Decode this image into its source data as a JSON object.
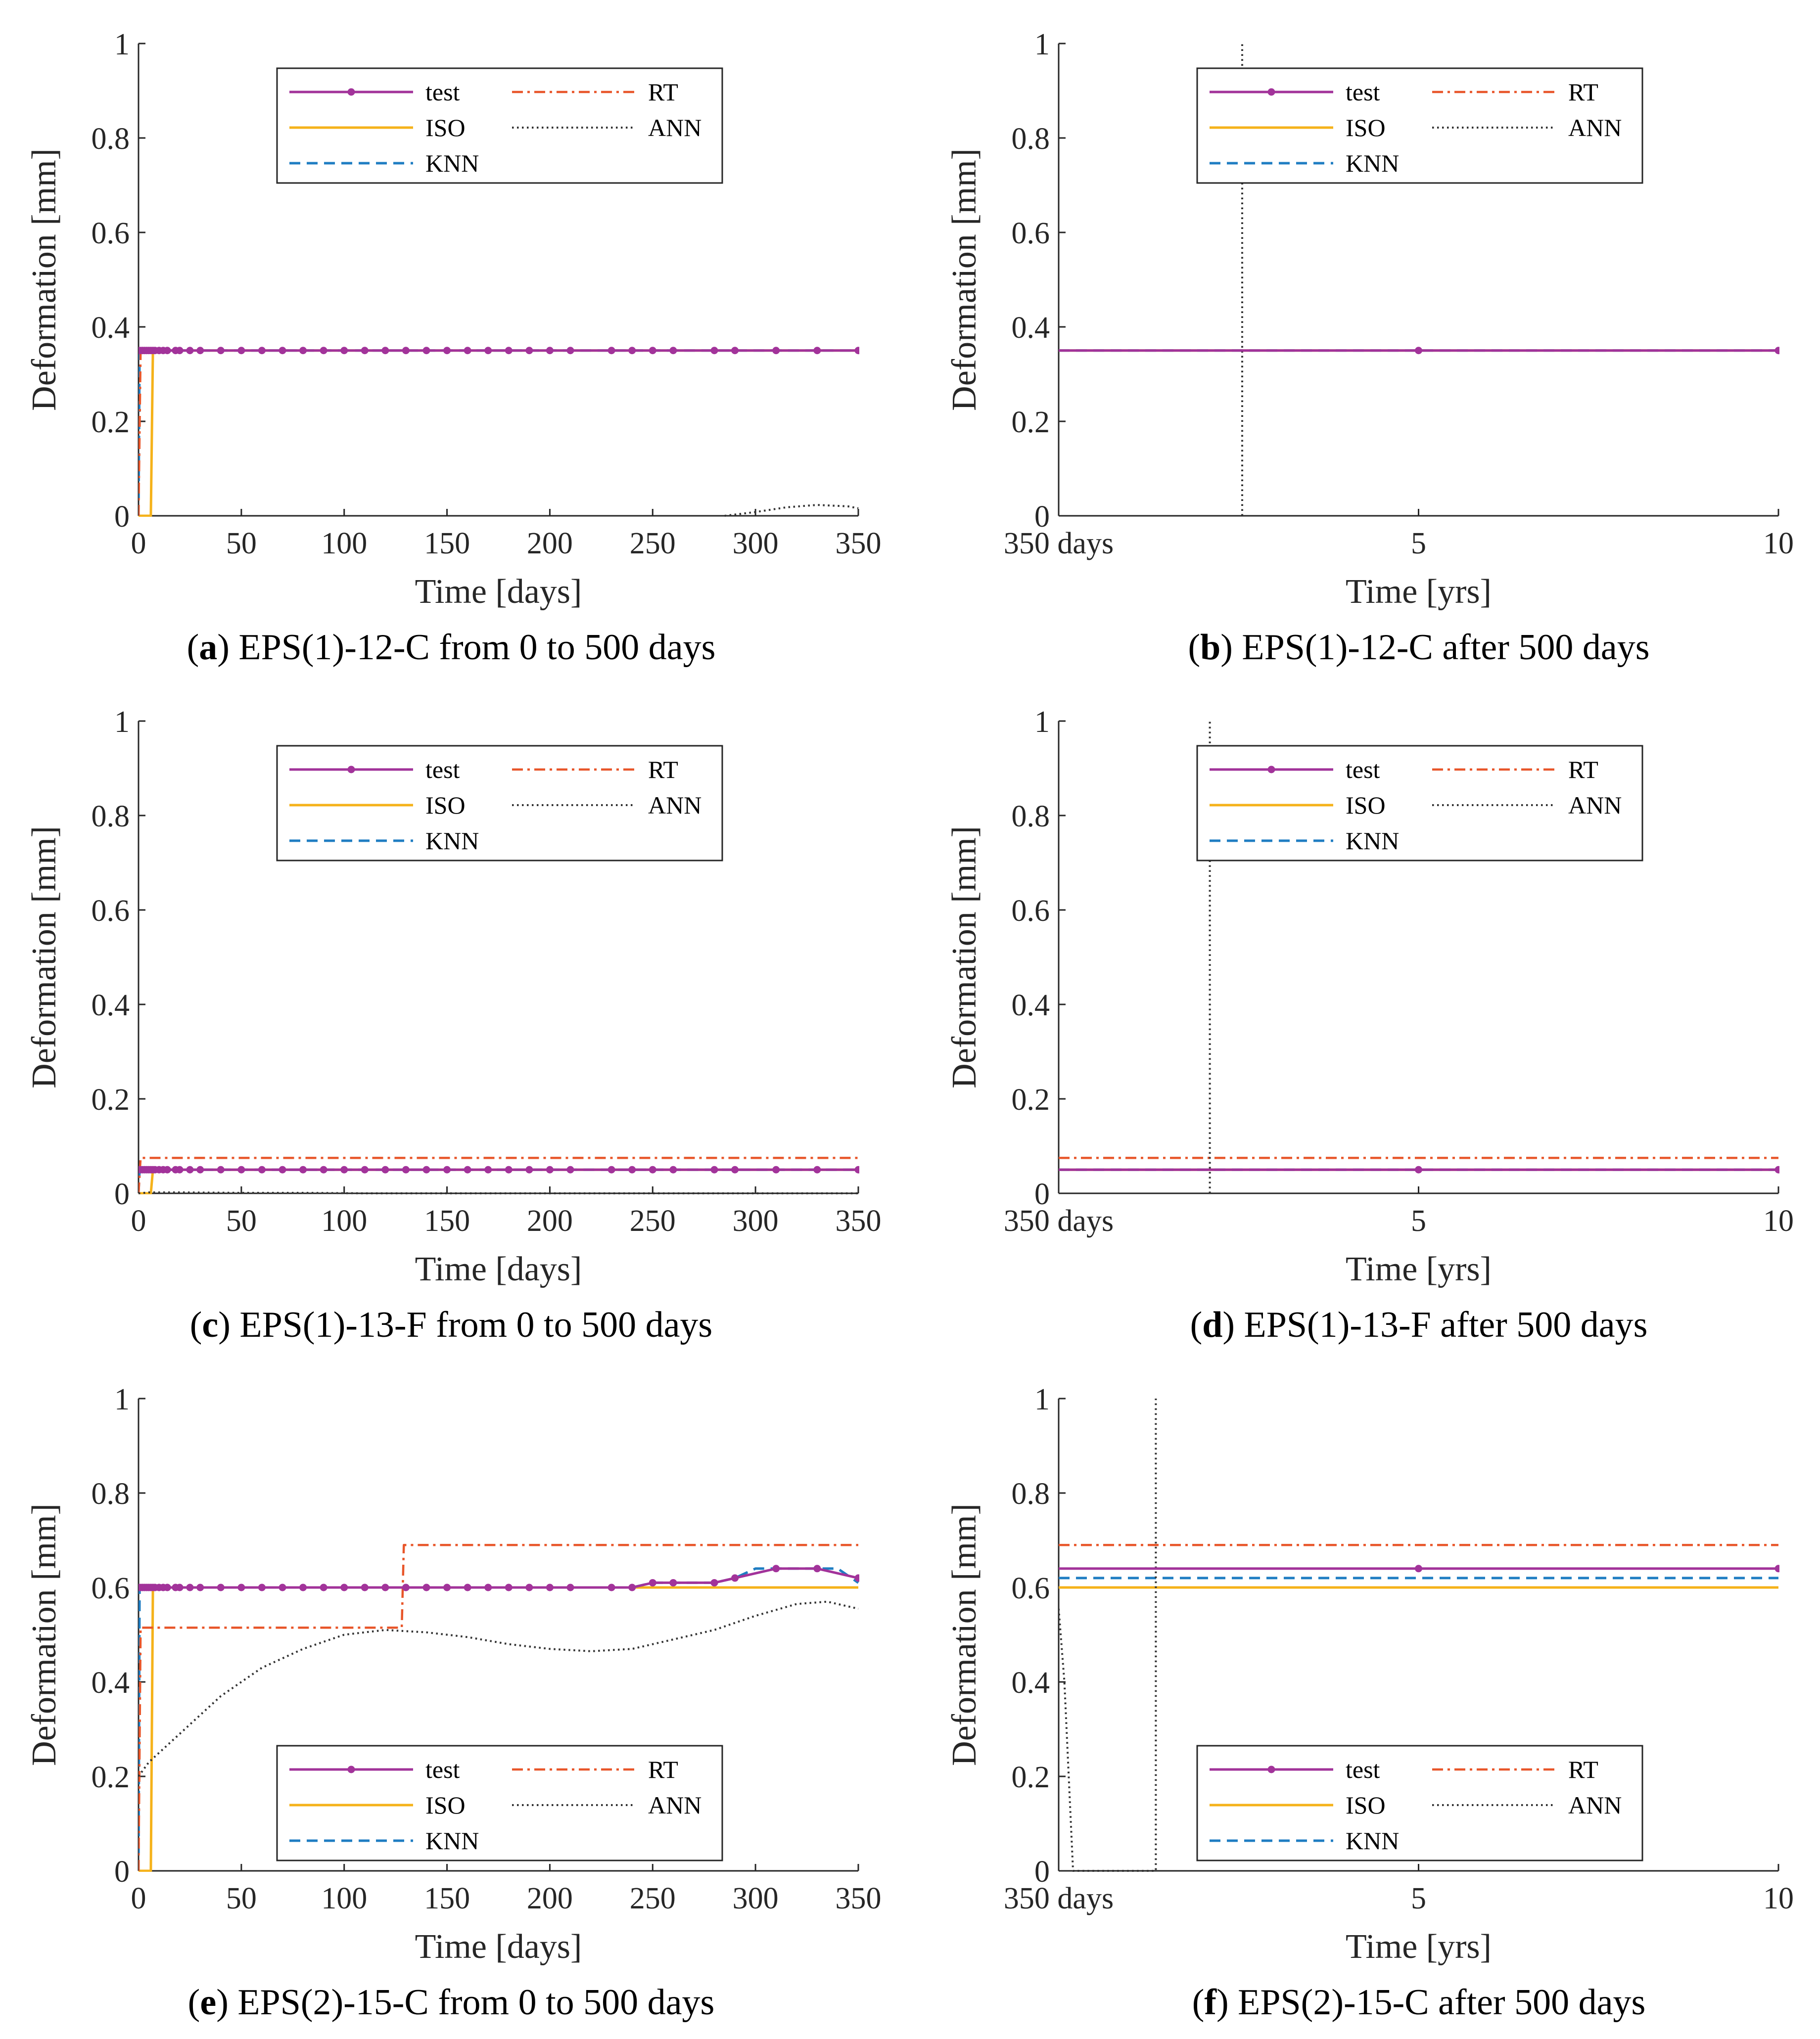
{
  "colors": {
    "test": "#A2339A",
    "ISO": "#F5B21A",
    "KNN": "#1F7DC2",
    "RT": "#E8562A",
    "ANN": "#333333"
  },
  "chart_data": [
    {
      "type": "line",
      "caption_letter": "a",
      "title": "EPS(1)-12-C from 0 to 500 days",
      "xlabel": "Time [days]",
      "ylabel": "Deformation [mm]",
      "xlim": [
        0,
        350
      ],
      "ylim": [
        0,
        1
      ],
      "xticks": [
        0,
        50,
        100,
        150,
        200,
        250,
        300,
        350
      ],
      "xtick_labels": [
        "0",
        "50",
        "100",
        "150",
        "200",
        "250",
        "300",
        "350"
      ],
      "yticks": [
        0,
        0.2,
        0.4,
        0.6,
        0.8,
        1
      ],
      "ytick_labels": [
        "0",
        "0.2",
        "0.4",
        "0.6",
        "0.8",
        "1"
      ],
      "legend": {
        "position": "top",
        "entries": [
          "test",
          "RT",
          "ISO",
          "ANN",
          "KNN"
        ]
      },
      "series": [
        {
          "name": "test",
          "x": [
            0,
            1,
            2,
            3,
            4,
            5,
            6,
            7,
            8,
            10,
            12,
            14,
            18,
            20,
            25,
            30,
            40,
            50,
            60,
            70,
            80,
            90,
            100,
            110,
            120,
            130,
            140,
            150,
            160,
            170,
            180,
            190,
            200,
            210,
            230,
            240,
            250,
            260,
            280,
            290,
            310,
            330,
            350
          ],
          "y": [
            0.35,
            0.35,
            0.35,
            0.35,
            0.35,
            0.35,
            0.35,
            0.35,
            0.35,
            0.35,
            0.35,
            0.35,
            0.35,
            0.35,
            0.35,
            0.35,
            0.35,
            0.35,
            0.35,
            0.35,
            0.35,
            0.35,
            0.35,
            0.35,
            0.35,
            0.35,
            0.35,
            0.35,
            0.35,
            0.35,
            0.35,
            0.35,
            0.35,
            0.35,
            0.35,
            0.35,
            0.35,
            0.35,
            0.35,
            0.35,
            0.35,
            0.35,
            0.35
          ]
        },
        {
          "name": "ISO",
          "x": [
            0,
            6,
            7,
            350
          ],
          "y": [
            0,
            0,
            0.35,
            0.35
          ]
        },
        {
          "name": "KNN",
          "x": [
            0,
            0.5,
            350
          ],
          "y": [
            0,
            0.35,
            0.35
          ]
        },
        {
          "name": "RT",
          "x": [
            0,
            1,
            350
          ],
          "y": [
            0,
            0.35,
            0.35
          ]
        },
        {
          "name": "ANN",
          "x": [
            285,
            300,
            315,
            330,
            345,
            350
          ],
          "y": [
            0,
            0.008,
            0.018,
            0.023,
            0.02,
            0.016
          ]
        }
      ]
    },
    {
      "type": "line",
      "caption_letter": "b",
      "title": "EPS(1)-12-C after 500 days",
      "xlabel": "Time [yrs]",
      "ylabel": "Deformation [mm]",
      "xlim": [
        0,
        10
      ],
      "ylim": [
        0,
        1
      ],
      "xticks": [
        0,
        5,
        10
      ],
      "xtick_labels": [
        "350 days",
        "5",
        "10"
      ],
      "yticks": [
        0,
        0.2,
        0.4,
        0.6,
        0.8,
        1
      ],
      "ytick_labels": [
        "0",
        "0.2",
        "0.4",
        "0.6",
        "0.8",
        "1"
      ],
      "legend": {
        "position": "top",
        "entries": [
          "test",
          "RT",
          "ISO",
          "ANN",
          "KNN"
        ]
      },
      "series": [
        {
          "name": "test",
          "x": [
            0,
            5,
            10
          ],
          "y": [
            0.35,
            0.35,
            0.35
          ],
          "markers": [
            5,
            10
          ]
        },
        {
          "name": "ISO",
          "x": [
            0,
            10
          ],
          "y": [
            0.35,
            0.35
          ]
        },
        {
          "name": "KNN",
          "x": [
            0,
            10
          ],
          "y": [
            0.35,
            0.35
          ]
        },
        {
          "name": "RT",
          "x": [
            0,
            10
          ],
          "y": [
            0.35,
            0.35
          ]
        },
        {
          "name": "ANN",
          "x": [
            2.55,
            2.55
          ],
          "y": [
            0,
            1.0
          ]
        }
      ]
    },
    {
      "type": "line",
      "caption_letter": "c",
      "title": "EPS(1)-13-F from 0 to 500 days",
      "xlabel": "Time [days]",
      "ylabel": "Deformation [mm]",
      "xlim": [
        0,
        350
      ],
      "ylim": [
        0,
        1
      ],
      "xticks": [
        0,
        50,
        100,
        150,
        200,
        250,
        300,
        350
      ],
      "xtick_labels": [
        "0",
        "50",
        "100",
        "150",
        "200",
        "250",
        "300",
        "350"
      ],
      "yticks": [
        0,
        0.2,
        0.4,
        0.6,
        0.8,
        1
      ],
      "ytick_labels": [
        "0",
        "0.2",
        "0.4",
        "0.6",
        "0.8",
        "1"
      ],
      "legend": {
        "position": "top",
        "entries": [
          "test",
          "RT",
          "ISO",
          "ANN",
          "KNN"
        ]
      },
      "series": [
        {
          "name": "test",
          "x": [
            0,
            1,
            2,
            3,
            4,
            5,
            6,
            7,
            8,
            10,
            12,
            14,
            18,
            20,
            25,
            30,
            40,
            50,
            60,
            70,
            80,
            90,
            100,
            110,
            120,
            130,
            140,
            150,
            160,
            170,
            180,
            190,
            200,
            210,
            230,
            240,
            250,
            260,
            280,
            290,
            310,
            330,
            350
          ],
          "y": [
            0.05,
            0.05,
            0.05,
            0.05,
            0.05,
            0.05,
            0.05,
            0.05,
            0.05,
            0.05,
            0.05,
            0.05,
            0.05,
            0.05,
            0.05,
            0.05,
            0.05,
            0.05,
            0.05,
            0.05,
            0.05,
            0.05,
            0.05,
            0.05,
            0.05,
            0.05,
            0.05,
            0.05,
            0.05,
            0.05,
            0.05,
            0.05,
            0.05,
            0.05,
            0.05,
            0.05,
            0.05,
            0.05,
            0.05,
            0.05,
            0.05,
            0.05,
            0.05
          ]
        },
        {
          "name": "ISO",
          "x": [
            0,
            6,
            7,
            350
          ],
          "y": [
            0,
            0,
            0.05,
            0.05
          ]
        },
        {
          "name": "KNN",
          "x": [
            0,
            0.5,
            350
          ],
          "y": [
            0,
            0.05,
            0.05
          ]
        },
        {
          "name": "RT",
          "x": [
            0,
            1,
            350
          ],
          "y": [
            0,
            0.075,
            0.075
          ]
        },
        {
          "name": "ANN",
          "x": [
            0,
            5,
            20,
            50,
            80,
            110,
            150,
            200,
            250,
            300,
            350
          ],
          "y": [
            0,
            0.002,
            0.002,
            0.001,
            0.001,
            0,
            0,
            0,
            0,
            0,
            0
          ]
        }
      ]
    },
    {
      "type": "line",
      "caption_letter": "d",
      "title": "EPS(1)-13-F after 500 days",
      "xlabel": "Time [yrs]",
      "ylabel": "Deformation [mm]",
      "xlim": [
        0,
        10
      ],
      "ylim": [
        0,
        1
      ],
      "xticks": [
        0,
        5,
        10
      ],
      "xtick_labels": [
        "350 days",
        "5",
        "10"
      ],
      "yticks": [
        0,
        0.2,
        0.4,
        0.6,
        0.8,
        1
      ],
      "ytick_labels": [
        "0",
        "0.2",
        "0.4",
        "0.6",
        "0.8",
        "1"
      ],
      "legend": {
        "position": "top",
        "entries": [
          "test",
          "RT",
          "ISO",
          "ANN",
          "KNN"
        ]
      },
      "series": [
        {
          "name": "test",
          "x": [
            0,
            5,
            10
          ],
          "y": [
            0.05,
            0.05,
            0.05
          ],
          "markers": [
            5,
            10
          ]
        },
        {
          "name": "ISO",
          "x": [
            0,
            10
          ],
          "y": [
            0.05,
            0.05
          ]
        },
        {
          "name": "KNN",
          "x": [
            0,
            10
          ],
          "y": [
            0.05,
            0.05
          ]
        },
        {
          "name": "RT",
          "x": [
            0,
            10
          ],
          "y": [
            0.075,
            0.075
          ]
        },
        {
          "name": "ANN",
          "x": [
            2.1,
            2.1
          ],
          "y": [
            0,
            1.0
          ]
        }
      ]
    },
    {
      "type": "line",
      "caption_letter": "e",
      "title": "EPS(2)-15-C from 0 to 500 days",
      "xlabel": "Time [days]",
      "ylabel": "Deformation [mm]",
      "xlim": [
        0,
        350
      ],
      "ylim": [
        0,
        1
      ],
      "xticks": [
        0,
        50,
        100,
        150,
        200,
        250,
        300,
        350
      ],
      "xtick_labels": [
        "0",
        "50",
        "100",
        "150",
        "200",
        "250",
        "300",
        "350"
      ],
      "yticks": [
        0,
        0.2,
        0.4,
        0.6,
        0.8,
        1
      ],
      "ytick_labels": [
        "0",
        "0.2",
        "0.4",
        "0.6",
        "0.8",
        "1"
      ],
      "legend": {
        "position": "bottom",
        "entries": [
          "test",
          "RT",
          "ISO",
          "ANN",
          "KNN"
        ]
      },
      "series": [
        {
          "name": "test",
          "x": [
            0,
            1,
            2,
            3,
            4,
            5,
            6,
            7,
            8,
            10,
            12,
            14,
            18,
            20,
            25,
            30,
            40,
            50,
            60,
            70,
            80,
            90,
            100,
            110,
            120,
            130,
            140,
            150,
            160,
            170,
            180,
            190,
            200,
            210,
            230,
            240,
            250,
            260,
            280,
            290,
            310,
            330,
            350
          ],
          "y": [
            0.6,
            0.6,
            0.6,
            0.6,
            0.6,
            0.6,
            0.6,
            0.6,
            0.6,
            0.6,
            0.6,
            0.6,
            0.6,
            0.6,
            0.6,
            0.6,
            0.6,
            0.6,
            0.6,
            0.6,
            0.6,
            0.6,
            0.6,
            0.6,
            0.6,
            0.6,
            0.6,
            0.6,
            0.6,
            0.6,
            0.6,
            0.6,
            0.6,
            0.6,
            0.6,
            0.6,
            0.61,
            0.61,
            0.61,
            0.62,
            0.64,
            0.64,
            0.62
          ]
        },
        {
          "name": "ISO",
          "x": [
            0,
            6,
            7,
            350
          ],
          "y": [
            0,
            0,
            0.6,
            0.6
          ]
        },
        {
          "name": "KNN",
          "x": [
            0,
            0.5,
            240,
            250,
            260,
            280,
            290,
            300,
            310,
            330,
            340,
            350
          ],
          "y": [
            0,
            0.6,
            0.6,
            0.61,
            0.61,
            0.61,
            0.62,
            0.64,
            0.64,
            0.64,
            0.64,
            0.61
          ]
        },
        {
          "name": "RT",
          "x": [
            0,
            1,
            128,
            129,
            350
          ],
          "y": [
            0,
            0.515,
            0.515,
            0.69,
            0.69
          ]
        },
        {
          "name": "ANN",
          "x": [
            0,
            5,
            20,
            40,
            60,
            80,
            100,
            120,
            140,
            160,
            180,
            200,
            220,
            240,
            260,
            280,
            300,
            320,
            335,
            350
          ],
          "y": [
            0.2,
            0.23,
            0.29,
            0.37,
            0.43,
            0.47,
            0.5,
            0.51,
            0.505,
            0.495,
            0.48,
            0.47,
            0.465,
            0.47,
            0.49,
            0.51,
            0.54,
            0.565,
            0.57,
            0.555
          ]
        }
      ]
    },
    {
      "type": "line",
      "caption_letter": "f",
      "title": "EPS(2)-15-C after 500 days",
      "xlabel": "Time [yrs]",
      "ylabel": "Deformation [mm]",
      "xlim": [
        0,
        10
      ],
      "ylim": [
        0,
        1
      ],
      "xticks": [
        0,
        5,
        10
      ],
      "xtick_labels": [
        "350 days",
        "5",
        "10"
      ],
      "yticks": [
        0,
        0.2,
        0.4,
        0.6,
        0.8,
        1
      ],
      "ytick_labels": [
        "0",
        "0.2",
        "0.4",
        "0.6",
        "0.8",
        "1"
      ],
      "legend": {
        "position": "bottom",
        "entries": [
          "test",
          "RT",
          "ISO",
          "ANN",
          "KNN"
        ]
      },
      "series": [
        {
          "name": "test",
          "x": [
            0,
            5,
            10
          ],
          "y": [
            0.64,
            0.64,
            0.64
          ],
          "markers": [
            5,
            10
          ]
        },
        {
          "name": "ISO",
          "x": [
            0,
            10
          ],
          "y": [
            0.6,
            0.6
          ]
        },
        {
          "name": "KNN",
          "x": [
            0,
            10
          ],
          "y": [
            0.62,
            0.62
          ]
        },
        {
          "name": "RT",
          "x": [
            0,
            10
          ],
          "y": [
            0.69,
            0.69
          ]
        },
        {
          "name": "ANN",
          "x": [
            0,
            0.08,
            0.2,
            1.35,
            1.35
          ],
          "y": [
            0.555,
            0.4,
            0,
            0,
            1.0
          ]
        }
      ]
    }
  ]
}
